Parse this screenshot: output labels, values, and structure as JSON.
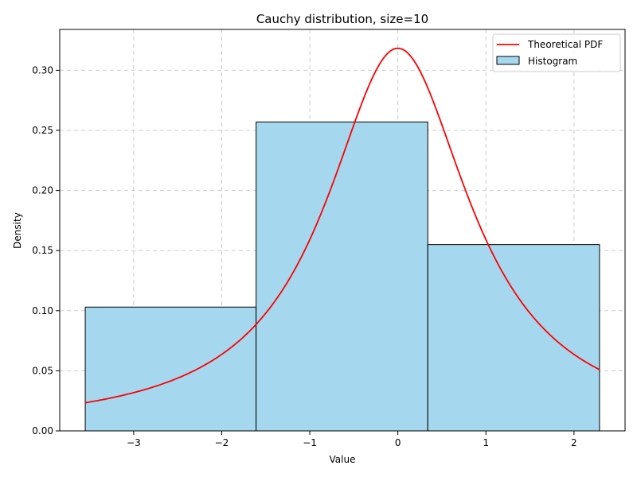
{
  "chart_data": {
    "type": "bar",
    "title": "Cauchy distribution, size=10",
    "xlabel": "Value",
    "ylabel": "Density",
    "xlim": [
      -3.84,
      2.58
    ],
    "ylim": [
      0,
      0.334
    ],
    "xticks": [
      -3,
      -2,
      -1,
      0,
      1,
      2
    ],
    "xtick_labels": [
      "−3",
      "−2",
      "−1",
      "0",
      "1",
      "2"
    ],
    "yticks": [
      0,
      0.05,
      0.1,
      0.15,
      0.2,
      0.25,
      0.3
    ],
    "ytick_labels": [
      "0.00",
      "0.05",
      "0.10",
      "0.15",
      "0.20",
      "0.25",
      "0.30"
    ],
    "grid": true,
    "legend_position": "top-right",
    "histogram": {
      "name": "Histogram",
      "bin_edges": [
        -3.55,
        -1.61,
        0.34,
        2.29
      ],
      "values": [
        0.103,
        0.257,
        0.155
      ],
      "color": "#a5d8ee",
      "edgecolor": "#000000"
    },
    "pdf": {
      "name": "Theoretical PDF",
      "distribution": "cauchy",
      "loc": 0,
      "scale": 1,
      "x_range": [
        -3.55,
        2.29
      ],
      "color": "#ff0000"
    }
  }
}
